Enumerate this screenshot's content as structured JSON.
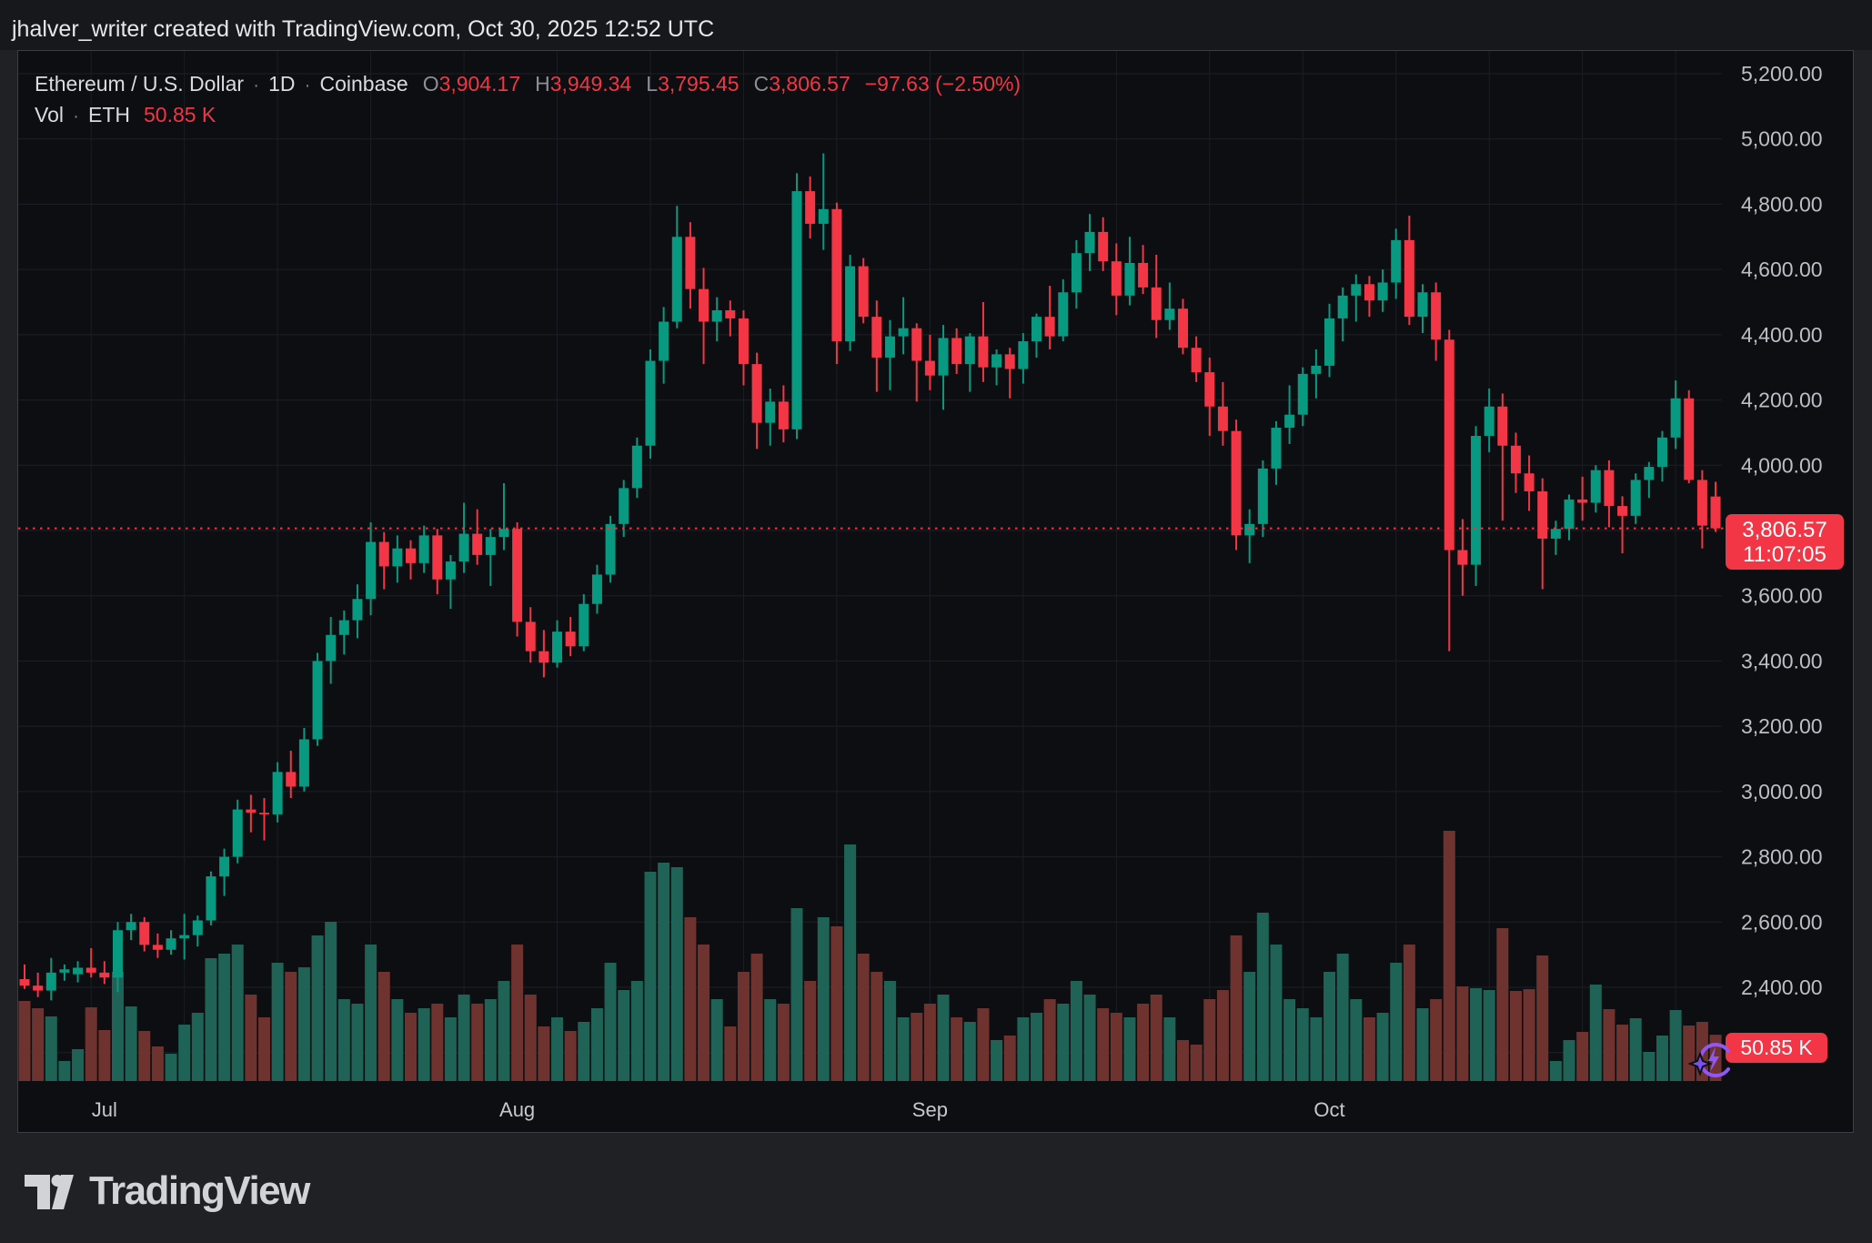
{
  "header": {
    "attribution": "jhalver_writer created with TradingView.com, Oct 30, 2025 12:52 UTC"
  },
  "legend": {
    "symbol": "Ethereum / U.S. Dollar",
    "separator": "·",
    "interval": "1D",
    "exchange": "Coinbase",
    "ohlc": {
      "o_label": "O",
      "o": "3,904.17",
      "h_label": "H",
      "h": "3,949.34",
      "l_label": "L",
      "l": "3,795.45",
      "c_label": "C",
      "c": "3,806.57",
      "change": "−97.63 (−2.50%)"
    },
    "volume_row": {
      "label": "Vol",
      "sep": "·",
      "unit": "ETH",
      "value": "50.85 K"
    }
  },
  "price_axis": {
    "label": {
      "price": "3,806.57",
      "countdown": "11:07:05"
    }
  },
  "time_axis": {
    "months": [
      "Jul",
      "Aug",
      "Sep",
      "Oct"
    ]
  },
  "volume_label": {
    "text": "50.85 K"
  },
  "footer": {
    "brand": "TradingView"
  },
  "colors": {
    "up": "#089981",
    "down": "#f23645",
    "vol_up": "#1e6356",
    "vol_down": "#6f332f",
    "accent_red": "#f23645",
    "purple": "#9157f6",
    "axis_text": "#bcbfc6",
    "month_text": "#c6c8cc"
  },
  "chart_data": {
    "type": "candlestick",
    "title": "Ethereum / U.S. Dollar · 1D · Coinbase",
    "xlabel": "",
    "ylabel": "",
    "start_date": "2025-06-25",
    "interval": "1D",
    "grid": "on",
    "legend_position": "top-left",
    "ylim": [
      2113,
      5272
    ],
    "price_ticks": [
      5200,
      5000,
      4800,
      4600,
      4400,
      4200,
      4000,
      3800,
      3600,
      3400,
      3200,
      3000,
      2800,
      2600,
      2400,
      2200
    ],
    "last_price": 3806.57,
    "last_volume_k": 50.85,
    "volume_unit": "K ETH",
    "ohlcv": [
      [
        2425,
        2470,
        2395,
        2405,
        88
      ],
      [
        2405,
        2445,
        2370,
        2390,
        80
      ],
      [
        2390,
        2490,
        2360,
        2445,
        71
      ],
      [
        2445,
        2470,
        2420,
        2455,
        22
      ],
      [
        2440,
        2480,
        2415,
        2460,
        35
      ],
      [
        2460,
        2520,
        2430,
        2445,
        81
      ],
      [
        2445,
        2480,
        2410,
        2430,
        56
      ],
      [
        2430,
        2600,
        2385,
        2575,
        120
      ],
      [
        2575,
        2625,
        2545,
        2600,
        82
      ],
      [
        2600,
        2615,
        2510,
        2530,
        55
      ],
      [
        2530,
        2565,
        2490,
        2515,
        38
      ],
      [
        2515,
        2575,
        2500,
        2550,
        30
      ],
      [
        2550,
        2625,
        2485,
        2560,
        62
      ],
      [
        2560,
        2620,
        2525,
        2605,
        75
      ],
      [
        2605,
        2755,
        2590,
        2740,
        135
      ],
      [
        2740,
        2825,
        2680,
        2800,
        140
      ],
      [
        2800,
        2975,
        2780,
        2945,
        150
      ],
      [
        2945,
        2990,
        2875,
        2935,
        95
      ],
      [
        2935,
        2980,
        2850,
        2930,
        70
      ],
      [
        2930,
        3090,
        2905,
        3060,
        130
      ],
      [
        3060,
        3125,
        2980,
        3015,
        120
      ],
      [
        3015,
        3195,
        3000,
        3160,
        125
      ],
      [
        3160,
        3425,
        3140,
        3400,
        160
      ],
      [
        3400,
        3535,
        3330,
        3480,
        175
      ],
      [
        3480,
        3555,
        3420,
        3525,
        90
      ],
      [
        3525,
        3635,
        3470,
        3590,
        85
      ],
      [
        3590,
        3825,
        3540,
        3765,
        150
      ],
      [
        3765,
        3795,
        3620,
        3690,
        120
      ],
      [
        3690,
        3785,
        3640,
        3745,
        90
      ],
      [
        3745,
        3770,
        3650,
        3700,
        75
      ],
      [
        3700,
        3815,
        3670,
        3785,
        80
      ],
      [
        3785,
        3805,
        3605,
        3650,
        85
      ],
      [
        3650,
        3725,
        3560,
        3705,
        70
      ],
      [
        3705,
        3885,
        3670,
        3790,
        95
      ],
      [
        3790,
        3865,
        3695,
        3725,
        85
      ],
      [
        3725,
        3805,
        3630,
        3780,
        90
      ],
      [
        3780,
        3945,
        3740,
        3805,
        110
      ],
      [
        3805,
        3825,
        3475,
        3520,
        150
      ],
      [
        3520,
        3565,
        3395,
        3430,
        95
      ],
      [
        3430,
        3495,
        3350,
        3395,
        60
      ],
      [
        3395,
        3525,
        3380,
        3490,
        70
      ],
      [
        3490,
        3535,
        3415,
        3445,
        55
      ],
      [
        3445,
        3605,
        3430,
        3575,
        65
      ],
      [
        3575,
        3695,
        3545,
        3665,
        80
      ],
      [
        3665,
        3845,
        3640,
        3820,
        130
      ],
      [
        3820,
        3955,
        3780,
        3930,
        100
      ],
      [
        3930,
        4085,
        3900,
        4060,
        110
      ],
      [
        4060,
        4355,
        4020,
        4320,
        230
      ],
      [
        4320,
        4485,
        4250,
        4440,
        240
      ],
      [
        4440,
        4795,
        4420,
        4700,
        235
      ],
      [
        4700,
        4745,
        4480,
        4540,
        180
      ],
      [
        4540,
        4605,
        4310,
        4440,
        150
      ],
      [
        4440,
        4515,
        4380,
        4475,
        90
      ],
      [
        4475,
        4505,
        4395,
        4450,
        60
      ],
      [
        4450,
        4475,
        4245,
        4310,
        120
      ],
      [
        4310,
        4345,
        4050,
        4130,
        140
      ],
      [
        4130,
        4235,
        4060,
        4195,
        90
      ],
      [
        4195,
        4245,
        4070,
        4110,
        85
      ],
      [
        4110,
        4895,
        4080,
        4840,
        190
      ],
      [
        4840,
        4885,
        4695,
        4740,
        110
      ],
      [
        4740,
        4956,
        4660,
        4785,
        180
      ],
      [
        4785,
        4805,
        4310,
        4380,
        170
      ],
      [
        4380,
        4645,
        4350,
        4610,
        260
      ],
      [
        4610,
        4635,
        4435,
        4455,
        140
      ],
      [
        4455,
        4505,
        4225,
        4330,
        120
      ],
      [
        4330,
        4445,
        4230,
        4395,
        110
      ],
      [
        4395,
        4515,
        4340,
        4420,
        70
      ],
      [
        4420,
        4435,
        4195,
        4320,
        75
      ],
      [
        4320,
        4400,
        4230,
        4275,
        85
      ],
      [
        4275,
        4430,
        4170,
        4390,
        95
      ],
      [
        4390,
        4420,
        4280,
        4310,
        70
      ],
      [
        4310,
        4405,
        4225,
        4395,
        65
      ],
      [
        4395,
        4500,
        4255,
        4300,
        80
      ],
      [
        4300,
        4355,
        4245,
        4340,
        45
      ],
      [
        4340,
        4360,
        4205,
        4295,
        50
      ],
      [
        4295,
        4405,
        4250,
        4380,
        70
      ],
      [
        4380,
        4465,
        4330,
        4455,
        75
      ],
      [
        4455,
        4550,
        4355,
        4395,
        90
      ],
      [
        4395,
        4570,
        4380,
        4530,
        85
      ],
      [
        4530,
        4690,
        4480,
        4650,
        110
      ],
      [
        4650,
        4770,
        4595,
        4715,
        95
      ],
      [
        4715,
        4760,
        4595,
        4625,
        80
      ],
      [
        4625,
        4680,
        4460,
        4520,
        75
      ],
      [
        4520,
        4700,
        4490,
        4620,
        70
      ],
      [
        4620,
        4675,
        4525,
        4545,
        85
      ],
      [
        4545,
        4645,
        4390,
        4445,
        95
      ],
      [
        4445,
        4560,
        4415,
        4480,
        70
      ],
      [
        4480,
        4510,
        4340,
        4360,
        45
      ],
      [
        4360,
        4395,
        4255,
        4285,
        40
      ],
      [
        4285,
        4330,
        4090,
        4180,
        90
      ],
      [
        4180,
        4255,
        4060,
        4105,
        100
      ],
      [
        4105,
        4140,
        3740,
        3785,
        160
      ],
      [
        3785,
        3865,
        3700,
        3820,
        120
      ],
      [
        3820,
        4015,
        3780,
        3990,
        185
      ],
      [
        3990,
        4135,
        3940,
        4115,
        150
      ],
      [
        4115,
        4245,
        4065,
        4155,
        90
      ],
      [
        4155,
        4300,
        4120,
        4280,
        80
      ],
      [
        4280,
        4355,
        4205,
        4305,
        70
      ],
      [
        4305,
        4495,
        4270,
        4450,
        120
      ],
      [
        4450,
        4545,
        4380,
        4520,
        140
      ],
      [
        4520,
        4585,
        4440,
        4555,
        90
      ],
      [
        4555,
        4580,
        4455,
        4505,
        70
      ],
      [
        4505,
        4600,
        4470,
        4560,
        75
      ],
      [
        4560,
        4725,
        4510,
        4690,
        130
      ],
      [
        4690,
        4765,
        4430,
        4455,
        150
      ],
      [
        4455,
        4555,
        4405,
        4530,
        80
      ],
      [
        4530,
        4560,
        4320,
        4385,
        90
      ],
      [
        4385,
        4415,
        3430,
        3740,
        275
      ],
      [
        3740,
        3835,
        3600,
        3695,
        104
      ],
      [
        3695,
        4120,
        3630,
        4090,
        102
      ],
      [
        4090,
        4235,
        4040,
        4180,
        100
      ],
      [
        4180,
        4220,
        3830,
        4060,
        168
      ],
      [
        4060,
        4100,
        3915,
        3975,
        99
      ],
      [
        3975,
        4030,
        3860,
        3920,
        101
      ],
      [
        3920,
        3960,
        3620,
        3775,
        138
      ],
      [
        3775,
        3830,
        3725,
        3805,
        22
      ],
      [
        3805,
        3910,
        3770,
        3895,
        45
      ],
      [
        3895,
        3965,
        3830,
        3885,
        54
      ],
      [
        3885,
        4000,
        3855,
        3985,
        106
      ],
      [
        3985,
        4015,
        3810,
        3875,
        79
      ],
      [
        3875,
        3905,
        3730,
        3845,
        62
      ],
      [
        3845,
        3975,
        3820,
        3955,
        69
      ],
      [
        3955,
        4010,
        3900,
        3995,
        32
      ],
      [
        3995,
        4105,
        3950,
        4085,
        50
      ],
      [
        4085,
        4260,
        4050,
        4205,
        78
      ],
      [
        4205,
        4230,
        3945,
        3955,
        61
      ],
      [
        3955,
        3985,
        3745,
        3815,
        65
      ],
      [
        3904.17,
        3949.34,
        3795.45,
        3806.57,
        50.85
      ]
    ]
  }
}
